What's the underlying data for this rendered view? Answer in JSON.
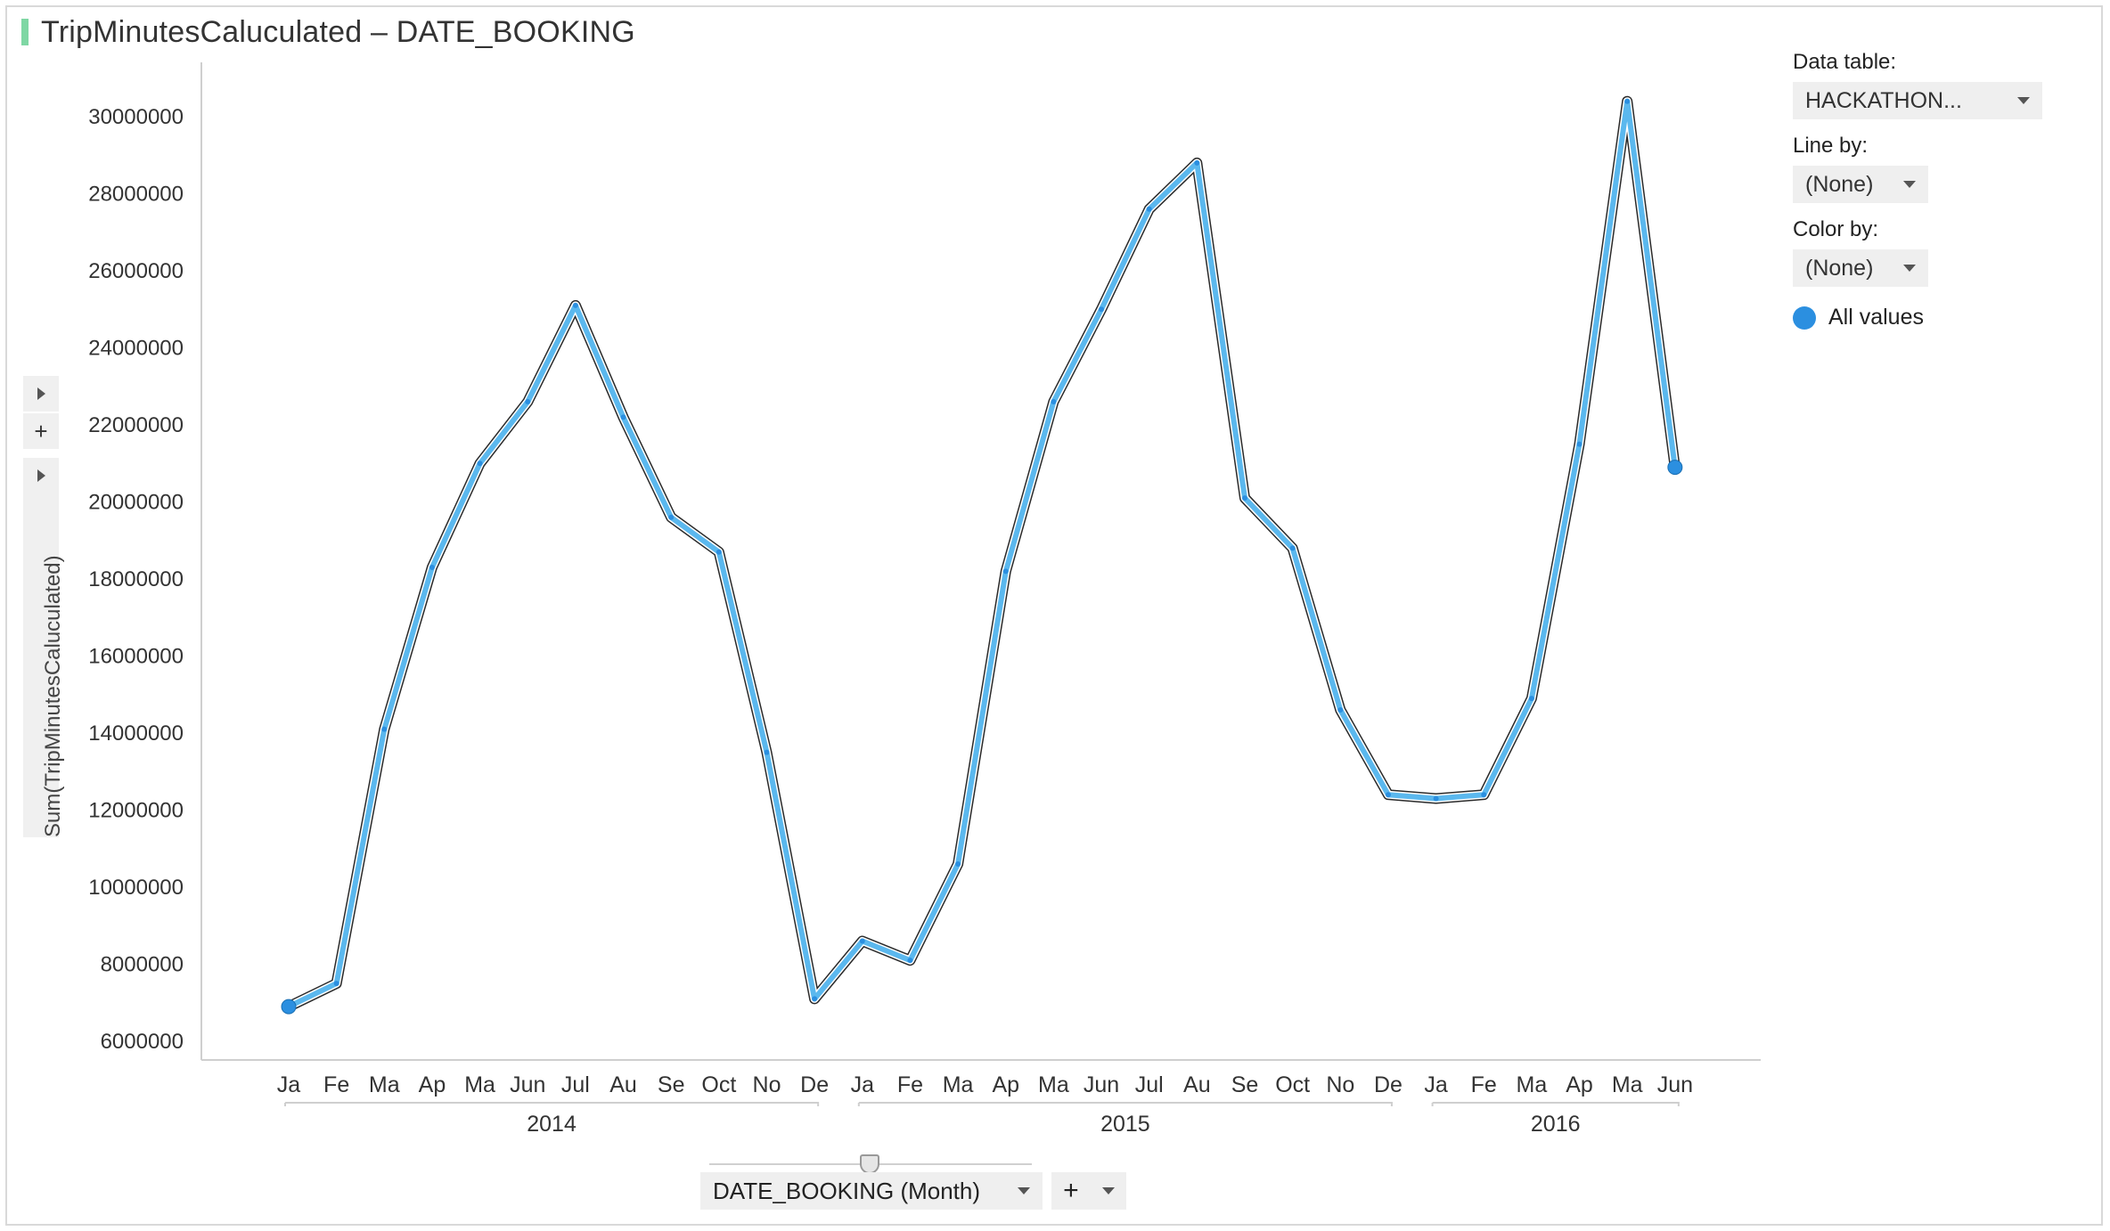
{
  "title": "TripMinutesCaluculated – DATE_BOOKING",
  "ylabel": "Sum(TripMinutesCaluculated)",
  "controls": {
    "data_table_label": "Data table:",
    "data_table_value": "HACKATHON...",
    "line_by_label": "Line by:",
    "line_by_value": "(None)",
    "color_by_label": "Color by:",
    "color_by_value": "(None)",
    "legend_label": "All values",
    "x_axis_selector": "DATE_BOOKING (Month)",
    "add_symbol": "+"
  },
  "colors": {
    "line": "#5bb8ee",
    "line_outline": "#2a2a2a",
    "marker": "#2b8fe0",
    "accent": "#7fd7a4",
    "axis": "#cfcfcf"
  },
  "chart_data": {
    "type": "line",
    "title": "TripMinutesCaluculated – DATE_BOOKING",
    "xlabel": "",
    "ylabel": "Sum(TripMinutesCaluculated)",
    "ylim": [
      6000000,
      31000000
    ],
    "yticks": [
      6000000,
      8000000,
      10000000,
      12000000,
      14000000,
      16000000,
      18000000,
      20000000,
      22000000,
      24000000,
      26000000,
      28000000,
      30000000
    ],
    "ytick_labels": [
      "6000000",
      "8000000",
      "10000000",
      "12000000",
      "14000000",
      "16000000",
      "18000000",
      "20000000",
      "22000000",
      "24000000",
      "26000000",
      "28000000",
      "30000000"
    ],
    "groups": [
      {
        "label": "2014",
        "months": [
          "Ja",
          "Fe",
          "Ma",
          "Ap",
          "Ma",
          "Jun",
          "Jul",
          "Au",
          "Se",
          "Oct",
          "No",
          "De"
        ]
      },
      {
        "label": "2015",
        "months": [
          "Ja",
          "Fe",
          "Ma",
          "Ap",
          "Ma",
          "Jun",
          "Jul",
          "Au",
          "Se",
          "Oct",
          "No",
          "De"
        ]
      },
      {
        "label": "2016",
        "months": [
          "Ja",
          "Fe",
          "Ma",
          "Ap",
          "Ma",
          "Jun"
        ]
      }
    ],
    "x": [
      "2014-01",
      "2014-02",
      "2014-03",
      "2014-04",
      "2014-05",
      "2014-06",
      "2014-07",
      "2014-08",
      "2014-09",
      "2014-10",
      "2014-11",
      "2014-12",
      "2015-01",
      "2015-02",
      "2015-03",
      "2015-04",
      "2015-05",
      "2015-06",
      "2015-07",
      "2015-08",
      "2015-09",
      "2015-10",
      "2015-11",
      "2015-12",
      "2016-01",
      "2016-02",
      "2016-03",
      "2016-04",
      "2016-05",
      "2016-06"
    ],
    "series": [
      {
        "values": [
          6900000,
          7500000,
          14100000,
          18300000,
          21000000,
          22600000,
          25100000,
          22200000,
          19600000,
          18700000,
          13500000,
          7100000,
          8600000,
          8100000,
          10600000,
          18200000,
          22600000,
          25000000,
          27600000,
          28800000,
          20100000,
          18800000,
          14600000,
          12400000,
          12300000,
          12400000,
          14900000,
          21500000,
          30400000,
          20900000
        ]
      }
    ],
    "legend": [
      "All values"
    ],
    "legend_position": "right",
    "grid": false
  }
}
